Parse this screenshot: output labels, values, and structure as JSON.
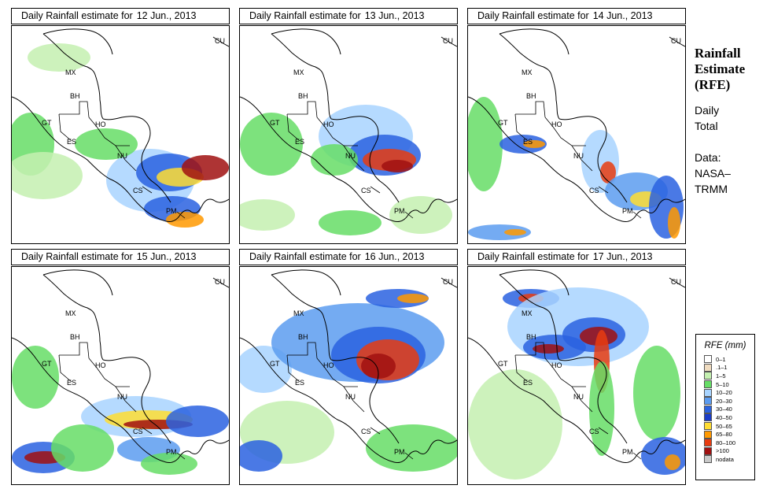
{
  "panels": [
    {
      "title": "Daily Rainfall estimate for",
      "date": "12 Jun., 2013"
    },
    {
      "title": "Daily Rainfall estimate for",
      "date": "13 Jun., 2013"
    },
    {
      "title": "Daily Rainfall estimate for",
      "date": "14 Jun., 2013"
    },
    {
      "title": "Daily Rainfall estimate for",
      "date": "15 Jun., 2013"
    },
    {
      "title": "Daily Rainfall estimate for",
      "date": "16 Jun., 2013"
    },
    {
      "title": "Daily Rainfall estimate for",
      "date": "17 Jun., 2013"
    }
  ],
  "countries": [
    "MX",
    "BH",
    "GT",
    "HO",
    "ES",
    "NU",
    "CS",
    "PM",
    "CU"
  ],
  "side": {
    "title_lines": [
      "Rainfall",
      "Estimate",
      "(RFE)"
    ],
    "sub_lines": [
      "Daily",
      "Total"
    ],
    "data_lines": [
      "Data:",
      "NASA–",
      "TRMM"
    ]
  },
  "legend": {
    "title": "RFE (mm)",
    "items": [
      {
        "label": "0–1",
        "color": "#ffffff"
      },
      {
        "label": ".1–1",
        "color": "#f0dcc0"
      },
      {
        "label": "1–5",
        "color": "#c4f0b0"
      },
      {
        "label": "5–10",
        "color": "#66dd66"
      },
      {
        "label": "10–20",
        "color": "#a8d4ff"
      },
      {
        "label": "20–30",
        "color": "#5c9cf0"
      },
      {
        "label": "30–40",
        "color": "#2a62e0"
      },
      {
        "label": "40–50",
        "color": "#1a3cc8"
      },
      {
        "label": "50–65",
        "color": "#ffdd33"
      },
      {
        "label": "65–80",
        "color": "#ff9900"
      },
      {
        "label": "80–100",
        "color": "#e83c10"
      },
      {
        "label": ">100",
        "color": "#a01010"
      },
      {
        "label": "nodata",
        "color": "#c8c8c8"
      }
    ]
  }
}
